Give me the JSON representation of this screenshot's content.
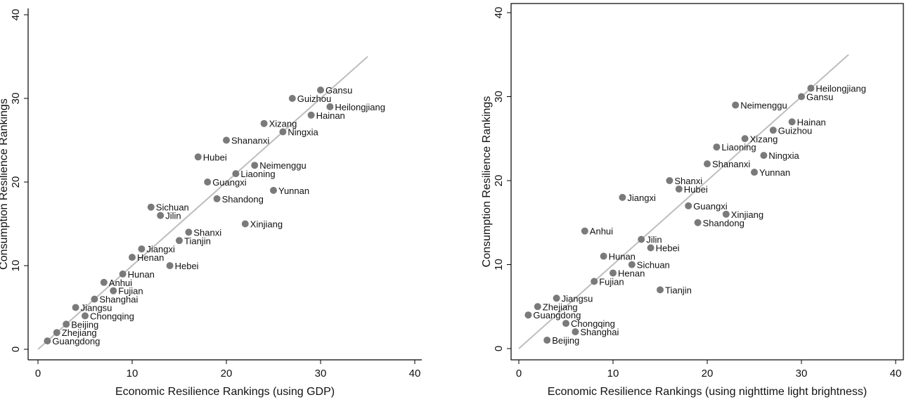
{
  "chart_data": [
    {
      "type": "scatter",
      "xlabel": "Economic Resilience Rankings (using GDP)",
      "ylabel": "Consumption Resilience Rankings",
      "xlim": [
        0,
        40
      ],
      "ylim": [
        0,
        40
      ],
      "xticks": [
        "0",
        "10",
        "20",
        "30",
        "40"
      ],
      "yticks": [
        "0",
        "10",
        "20",
        "30",
        "40"
      ],
      "reference_line": {
        "from": [
          0,
          0
        ],
        "to": [
          35,
          35
        ]
      },
      "points": [
        {
          "label": "Gansu",
          "x": 30,
          "y": 31
        },
        {
          "label": "Guizhou",
          "x": 27,
          "y": 30
        },
        {
          "label": "Heilongjiang",
          "x": 31,
          "y": 29
        },
        {
          "label": "Hainan",
          "x": 29,
          "y": 28
        },
        {
          "label": "Xizang",
          "x": 24,
          "y": 27
        },
        {
          "label": "Ningxia",
          "x": 26,
          "y": 26
        },
        {
          "label": "Shananxi",
          "x": 20,
          "y": 25
        },
        {
          "label": "Hubei",
          "x": 17,
          "y": 23
        },
        {
          "label": "Neimenggu",
          "x": 23,
          "y": 22
        },
        {
          "label": "Liaoning",
          "x": 21,
          "y": 21
        },
        {
          "label": "Guangxi",
          "x": 18,
          "y": 20
        },
        {
          "label": "Yunnan",
          "x": 25,
          "y": 19
        },
        {
          "label": "Shandong",
          "x": 19,
          "y": 18
        },
        {
          "label": "Sichuan",
          "x": 12,
          "y": 17
        },
        {
          "label": "Jilin",
          "x": 13,
          "y": 16
        },
        {
          "label": "Xinjiang",
          "x": 22,
          "y": 15
        },
        {
          "label": "Shanxi",
          "x": 16,
          "y": 14
        },
        {
          "label": "Tianjin",
          "x": 15,
          "y": 13
        },
        {
          "label": "Jiangxi",
          "x": 11,
          "y": 12
        },
        {
          "label": "Henan",
          "x": 10,
          "y": 11
        },
        {
          "label": "Hebei",
          "x": 14,
          "y": 10
        },
        {
          "label": "Hunan",
          "x": 9,
          "y": 9
        },
        {
          "label": "Anhui",
          "x": 7,
          "y": 8
        },
        {
          "label": "Fujian",
          "x": 8,
          "y": 7
        },
        {
          "label": "Shanghai",
          "x": 6,
          "y": 6
        },
        {
          "label": "Jiangsu",
          "x": 4,
          "y": 5
        },
        {
          "label": "Chongqing",
          "x": 5,
          "y": 4
        },
        {
          "label": "Beijing",
          "x": 3,
          "y": 3
        },
        {
          "label": "Zhejiang",
          "x": 2,
          "y": 2
        },
        {
          "label": "Guangdong",
          "x": 1,
          "y": 1
        }
      ]
    },
    {
      "type": "scatter",
      "xlabel": "Economic Resilience Rankings (using nighttime light brightness)",
      "ylabel": "Consumption Resilience Rankings",
      "xlim": [
        0,
        40
      ],
      "ylim": [
        0,
        40
      ],
      "xticks": [
        "0",
        "10",
        "20",
        "30",
        "40"
      ],
      "yticks": [
        "0",
        "10",
        "20",
        "30",
        "40"
      ],
      "reference_line": {
        "from": [
          0,
          0
        ],
        "to": [
          35,
          35
        ]
      },
      "points": [
        {
          "label": "Heilongjiang",
          "x": 31,
          "y": 31
        },
        {
          "label": "Gansu",
          "x": 30,
          "y": 30
        },
        {
          "label": "Neimenggu",
          "x": 23,
          "y": 29
        },
        {
          "label": "Hainan",
          "x": 29,
          "y": 27
        },
        {
          "label": "Guizhou",
          "x": 27,
          "y": 26
        },
        {
          "label": "Xizang",
          "x": 24,
          "y": 25
        },
        {
          "label": "Liaoning",
          "x": 21,
          "y": 24
        },
        {
          "label": "Ningxia",
          "x": 26,
          "y": 23
        },
        {
          "label": "Shananxi",
          "x": 20,
          "y": 22
        },
        {
          "label": "Yunnan",
          "x": 25,
          "y": 21
        },
        {
          "label": "Shanxi",
          "x": 16,
          "y": 20
        },
        {
          "label": "Hubei",
          "x": 17,
          "y": 19
        },
        {
          "label": "Jiangxi",
          "x": 11,
          "y": 18
        },
        {
          "label": "Guangxi",
          "x": 18,
          "y": 17
        },
        {
          "label": "Xinjiang",
          "x": 22,
          "y": 16
        },
        {
          "label": "Shandong",
          "x": 19,
          "y": 15
        },
        {
          "label": "Anhui",
          "x": 7,
          "y": 14
        },
        {
          "label": "Jilin",
          "x": 13,
          "y": 13
        },
        {
          "label": "Hebei",
          "x": 14,
          "y": 12
        },
        {
          "label": "Hunan",
          "x": 9,
          "y": 11
        },
        {
          "label": "Sichuan",
          "x": 12,
          "y": 10
        },
        {
          "label": "Henan",
          "x": 10,
          "y": 9
        },
        {
          "label": "Fujian",
          "x": 8,
          "y": 8
        },
        {
          "label": "Tianjin",
          "x": 15,
          "y": 7
        },
        {
          "label": "Jiangsu",
          "x": 4,
          "y": 6
        },
        {
          "label": "Zhejiang",
          "x": 2,
          "y": 5
        },
        {
          "label": "Guangdong",
          "x": 1,
          "y": 4
        },
        {
          "label": "Chongqing",
          "x": 5,
          "y": 3
        },
        {
          "label": "Shanghai",
          "x": 6,
          "y": 2
        },
        {
          "label": "Beijing",
          "x": 3,
          "y": 1
        }
      ]
    }
  ]
}
